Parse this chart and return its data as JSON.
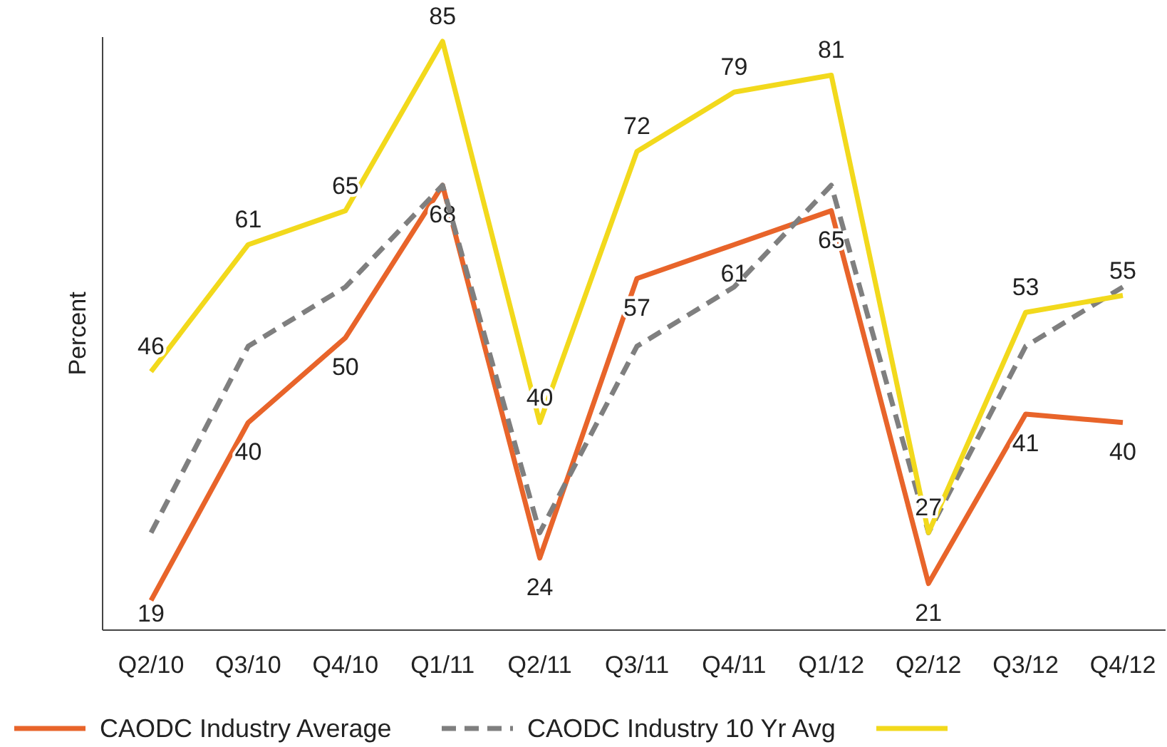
{
  "chart_data": {
    "type": "line",
    "ylabel": "Percent",
    "categories": [
      "Q2/10",
      "Q3/10",
      "Q4/10",
      "Q1/11",
      "Q2/11",
      "Q3/11",
      "Q4/11",
      "Q1/12",
      "Q2/12",
      "Q3/12",
      "Q4/12"
    ],
    "ylim": [
      15.5,
      85.5
    ],
    "legend": "bottom",
    "series": [
      {
        "name": "CAODC Industry Average",
        "color": "#e8642a",
        "line_style": "solid",
        "values": [
          19,
          40,
          50,
          68,
          24,
          57,
          61,
          65,
          21,
          41,
          40
        ],
        "value_labels": [
          "19",
          "40",
          "50",
          "68",
          "24",
          "57",
          "61",
          "65",
          "21",
          "41",
          "40"
        ]
      },
      {
        "name": "CAODC Industry 10 Yr Avg",
        "color": "#7f7f7f",
        "line_style": "dashed",
        "values": [
          27,
          49,
          56,
          68,
          27,
          49,
          56,
          68,
          27,
          49,
          56
        ]
      },
      {
        "color": "#f2d91c",
        "line_style": "solid",
        "values": [
          46,
          61,
          65,
          85,
          40,
          72,
          79,
          81,
          27,
          53,
          55
        ],
        "value_labels": [
          "46",
          "61",
          "65",
          "85",
          "40",
          "72",
          "79",
          "81",
          "27",
          "53",
          "55"
        ]
      }
    ]
  }
}
